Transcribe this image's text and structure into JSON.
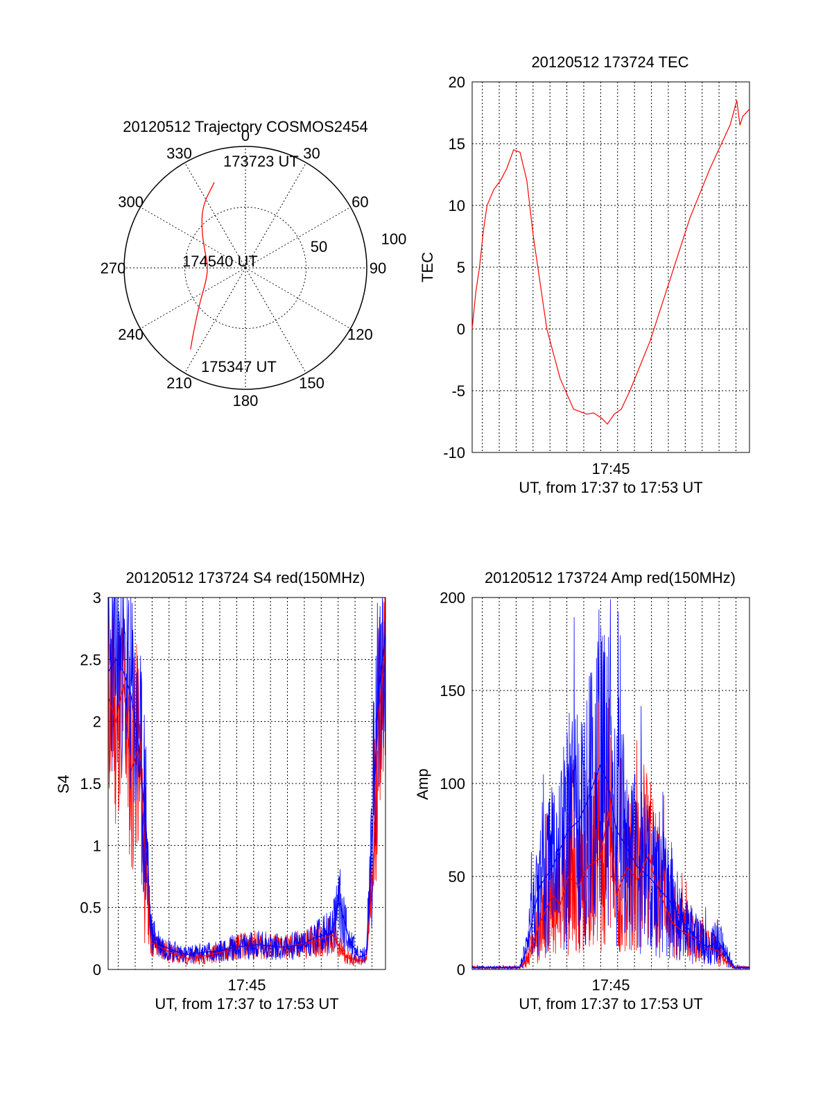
{
  "chart_data": [
    {
      "type": "polar",
      "title": "20120512 Trajectory COSMOS2454",
      "angle_labels": [
        "0",
        "30",
        "60",
        "90",
        "120",
        "150",
        "180",
        "210",
        "240",
        "270",
        "300",
        "330"
      ],
      "radius_labels": [
        "50",
        "100"
      ],
      "radius_values": [
        50,
        100
      ],
      "annotations": [
        "173723 UT",
        "174540 UT",
        "175347 UT"
      ],
      "colors": {
        "trajectory": "#ff0000",
        "frame": "#000000"
      },
      "series": [
        {
          "points": [
            {
              "az": 340,
              "el": 15
            },
            {
              "az": 325,
              "el": 28
            },
            {
              "az": 310,
              "el": 43
            },
            {
              "az": 292,
              "el": 54
            },
            {
              "az": 272,
              "el": 59
            },
            {
              "az": 252,
              "el": 56
            },
            {
              "az": 233,
              "el": 43
            },
            {
              "az": 219,
              "el": 22
            },
            {
              "az": 214,
              "el": 9
            }
          ]
        }
      ]
    },
    {
      "type": "line",
      "title": "20120512 173724 TEC",
      "xlabel": "UT, from 17:37 to 17:53 UT",
      "ylabel": "TEC",
      "x_tick_label": "17:45",
      "xlim": [
        "17:37:24",
        "17:53:48"
      ],
      "ylim": [
        -10,
        20
      ],
      "y_ticks": [
        "20",
        "15",
        "10",
        "5",
        "0",
        "-5",
        "-10"
      ],
      "y_values": [
        20,
        15,
        10,
        5,
        0,
        -5,
        -10
      ],
      "colors": {
        "line": "#ff0000"
      },
      "series": [
        {
          "x": [
            "17:37:24",
            "17:37:37",
            "17:37:50",
            "17:38:04",
            "17:38:17",
            "17:38:41",
            "17:39:04",
            "17:39:27",
            "17:39:51",
            "17:40:14",
            "17:40:38",
            "17:41:01",
            "17:41:49",
            "17:42:36",
            "17:43:24",
            "17:44:11",
            "17:44:35",
            "17:45:02",
            "17:45:24",
            "17:45:48",
            "17:46:13",
            "17:46:44",
            "17:47:55",
            "17:49:06",
            "17:50:17",
            "17:51:28",
            "17:52:39",
            "17:53:03",
            "17:53:14",
            "17:53:24",
            "17:53:48"
          ],
          "y": [
            0,
            3,
            5,
            8,
            10,
            11.3,
            12,
            13,
            14.5,
            14.3,
            12,
            7.5,
            0,
            -4,
            -6.5,
            -6.9,
            -6.8,
            -7.2,
            -7.7,
            -6.9,
            -6.5,
            -5,
            -1,
            4,
            9,
            13,
            16.5,
            18.5,
            16.5,
            17.2,
            17.8
          ]
        }
      ]
    },
    {
      "type": "line",
      "title": "20120512 173724 S4 red(150MHz)",
      "xlabel": "UT, from 17:37 to 17:53 UT",
      "ylabel": "S4",
      "x_tick_label": "17:45",
      "xlim": [
        "17:37:24",
        "17:53:48"
      ],
      "ylim": [
        0,
        3
      ],
      "y_ticks": [
        "3",
        "2.5",
        "2",
        "1.5",
        "1",
        "0.5",
        "0"
      ],
      "y_values": [
        3,
        2.5,
        2,
        1.5,
        1,
        0.5,
        0
      ],
      "colors": {
        "red": "#ff0000",
        "blue": "#0000ff"
      },
      "series": [
        {
          "color": "red",
          "x": [
            "17:37:24",
            "17:37:51",
            "17:38:19",
            "17:38:46",
            "17:39:13",
            "17:39:40",
            "17:39:55",
            "17:40:29",
            "17:41:18",
            "17:42:07",
            "17:43:07",
            "17:44:05",
            "17:44:54",
            "17:46:13",
            "17:47:43",
            "17:49:31",
            "17:50:39",
            "17:51:27",
            "17:52:13",
            "17:52:40",
            "17:53:07",
            "17:53:21",
            "17:53:48"
          ],
          "y": [
            2.2,
            2.0,
            2.3,
            1.6,
            1.8,
            0.8,
            0.22,
            0.18,
            0.12,
            0.09,
            0.11,
            0.14,
            0.18,
            0.2,
            0.18,
            0.22,
            0.28,
            0.1,
            0.07,
            0.08,
            0.9,
            2.0,
            2.6
          ]
        },
        {
          "color": "blue",
          "x": [
            "17:37:24",
            "17:37:51",
            "17:38:19",
            "17:38:46",
            "17:39:13",
            "17:39:40",
            "17:39:55",
            "17:40:29",
            "17:41:18",
            "17:42:07",
            "17:43:07",
            "17:44:05",
            "17:44:54",
            "17:46:13",
            "17:47:43",
            "17:48:55",
            "17:49:31",
            "17:50:39",
            "17:51:03",
            "17:51:39",
            "17:52:13",
            "17:52:40",
            "17:53:07",
            "17:53:21",
            "17:53:48"
          ],
          "y": [
            2.4,
            2.5,
            2.4,
            2.2,
            1.8,
            1.1,
            0.3,
            0.2,
            0.15,
            0.12,
            0.14,
            0.15,
            0.18,
            0.2,
            0.18,
            0.2,
            0.25,
            0.3,
            0.55,
            0.25,
            0.1,
            0.12,
            1.4,
            2.2,
            2.7
          ]
        }
      ]
    },
    {
      "type": "line",
      "title": "20120512 173724 Amp red(150MHz)",
      "xlabel": "UT, from 17:37 to 17:53 UT",
      "ylabel": "Amp",
      "x_tick_label": "17:45",
      "xlim": [
        "17:37:24",
        "17:53:48"
      ],
      "ylim": [
        0,
        200
      ],
      "y_ticks": [
        "200",
        "150",
        "100",
        "50",
        "0"
      ],
      "y_values": [
        200,
        150,
        100,
        50,
        0
      ],
      "colors": {
        "red": "#ff0000",
        "blue": "#0000ff"
      },
      "series": [
        {
          "color": "red",
          "x": [
            "17:37:24",
            "17:40:12",
            "17:40:37",
            "17:41:01",
            "17:41:25",
            "17:42:09",
            "17:42:37",
            "17:43:05",
            "17:43:43",
            "17:44:11",
            "17:44:59",
            "17:45:27",
            "17:45:56",
            "17:46:34",
            "17:47:12",
            "17:47:50",
            "17:48:18",
            "17:48:47",
            "17:49:15",
            "17:49:54",
            "17:50:22",
            "17:50:51",
            "17:51:19",
            "17:51:57",
            "17:52:20",
            "17:52:54",
            "17:53:48"
          ],
          "y": [
            1,
            1,
            5,
            15,
            25,
            40,
            35,
            50,
            45,
            55,
            60,
            85,
            40,
            55,
            48,
            62,
            45,
            35,
            25,
            20,
            18,
            15,
            12,
            10,
            5,
            1,
            1
          ]
        },
        {
          "color": "blue",
          "x": [
            "17:37:24",
            "17:40:12",
            "17:40:37",
            "17:41:01",
            "17:41:25",
            "17:42:09",
            "17:42:37",
            "17:43:05",
            "17:43:43",
            "17:44:11",
            "17:44:59",
            "17:45:27",
            "17:45:56",
            "17:46:34",
            "17:47:12",
            "17:47:50",
            "17:48:18",
            "17:48:47",
            "17:49:15",
            "17:49:54",
            "17:50:22",
            "17:50:51",
            "17:51:19",
            "17:51:57",
            "17:52:20",
            "17:52:54",
            "17:53:48"
          ],
          "y": [
            1,
            1,
            10,
            30,
            45,
            55,
            65,
            75,
            80,
            90,
            110,
            100,
            75,
            65,
            55,
            50,
            45,
            40,
            35,
            25,
            20,
            15,
            12,
            15,
            10,
            1,
            1
          ]
        }
      ]
    }
  ]
}
